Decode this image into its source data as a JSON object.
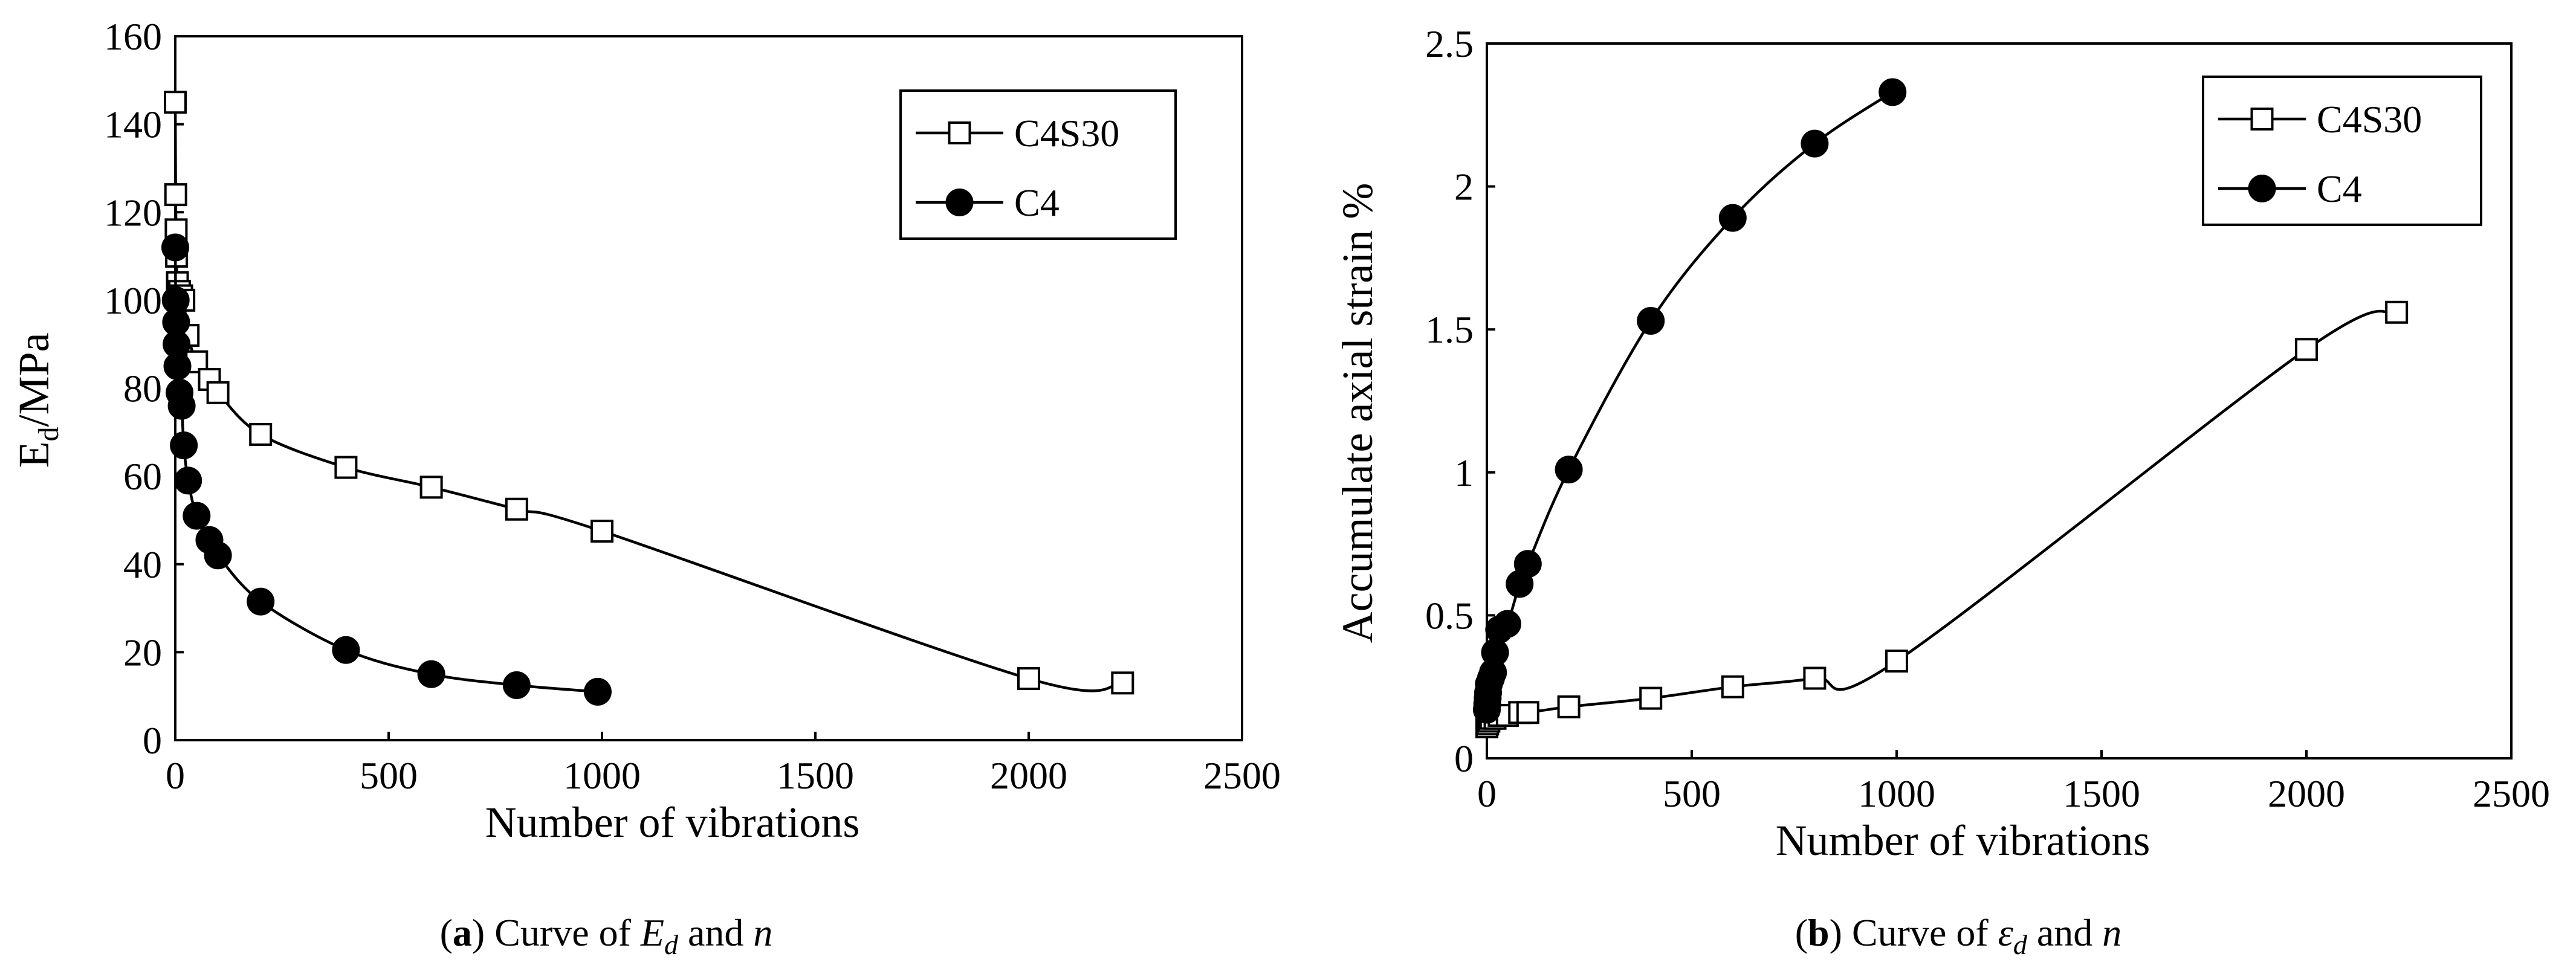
{
  "chart_data": [
    {
      "type": "line",
      "xlabel": "Number of vibrations",
      "ylabel_main": "E",
      "ylabel_sub": "d",
      "ylabel_rest": "/MPa",
      "xlim": [
        0,
        2500
      ],
      "ylim": [
        0,
        160
      ],
      "xticks": [
        "0",
        "500",
        "1000",
        "1500",
        "2000",
        "2500"
      ],
      "yticks": [
        "0",
        "20",
        "40",
        "60",
        "80",
        "100",
        "120",
        "140",
        "160"
      ],
      "grid": false,
      "legend_position": "top-right",
      "caption": {
        "letter": "a",
        "text": "Curve of",
        "symbol_main": "E",
        "symbol_sub": "d",
        "conj": "and",
        "var": "n"
      },
      "series": [
        {
          "name": "C4S30",
          "marker": "open-square",
          "x": [
            0,
            1,
            2,
            3,
            5,
            10,
            15,
            20,
            30,
            50,
            80,
            100,
            200,
            400,
            600,
            800,
            1000,
            2000,
            2220
          ],
          "y": [
            145,
            124,
            116,
            110,
            104,
            102,
            101,
            100,
            92,
            86,
            82,
            79,
            69.5,
            62,
            57.5,
            52.5,
            47.5,
            14,
            13
          ]
        },
        {
          "name": "C4",
          "marker": "filled-circle",
          "x": [
            0,
            1,
            2,
            3,
            5,
            10,
            15,
            20,
            30,
            50,
            80,
            100,
            200,
            400,
            600,
            800,
            990
          ],
          "y": [
            112,
            100,
            95,
            90,
            85,
            79,
            76,
            67,
            59,
            51,
            45.5,
            42,
            31.5,
            20.5,
            15,
            12.5,
            11
          ]
        }
      ]
    },
    {
      "type": "line",
      "xlabel": "Number of vibrations",
      "ylabel": "Accumulate axial strain %",
      "xlim": [
        0,
        2500
      ],
      "ylim": [
        0,
        2.5
      ],
      "xticks": [
        "0",
        "500",
        "1000",
        "1500",
        "2000",
        "2500"
      ],
      "yticks": [
        "0",
        "0.5",
        "1",
        "1.5",
        "2",
        "2.5"
      ],
      "grid": false,
      "legend_position": "top-right",
      "caption": {
        "letter": "b",
        "text": "Curve of",
        "symbol_main": "ε",
        "symbol_sub": "d",
        "conj": "and",
        "var": "n"
      },
      "series": [
        {
          "name": "C4S30",
          "marker": "open-square",
          "x": [
            0,
            2,
            5,
            10,
            20,
            30,
            50,
            80,
            100,
            200,
            400,
            600,
            800,
            1000,
            2000,
            2220
          ],
          "y": [
            0.11,
            0.12,
            0.13,
            0.14,
            0.14,
            0.15,
            0.15,
            0.16,
            0.16,
            0.18,
            0.21,
            0.25,
            0.28,
            0.34,
            1.43,
            1.56
          ]
        },
        {
          "name": "C4",
          "marker": "filled-circle",
          "x": [
            0,
            1,
            2,
            3,
            5,
            10,
            15,
            20,
            30,
            50,
            80,
            100,
            200,
            400,
            600,
            800,
            990
          ],
          "y": [
            0.17,
            0.19,
            0.21,
            0.23,
            0.26,
            0.28,
            0.3,
            0.37,
            0.45,
            0.47,
            0.61,
            0.68,
            1.01,
            1.53,
            1.89,
            2.15,
            2.33
          ]
        }
      ]
    }
  ]
}
